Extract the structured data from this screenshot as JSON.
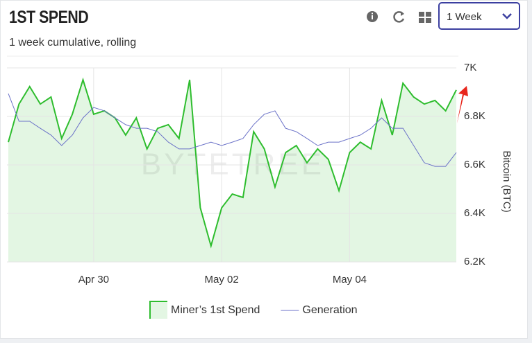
{
  "header": {
    "title": "1ST SPEND",
    "subtitle": "1 week cumulative, rolling",
    "period": "1 Week"
  },
  "chart_data": {
    "type": "line",
    "watermark": "BYTETREE",
    "ylabel": "Bitcoin (BTC)",
    "categories": [
      null,
      null,
      null,
      null,
      null,
      null,
      null,
      null,
      "Apr 30",
      null,
      null,
      null,
      null,
      null,
      null,
      null,
      null,
      null,
      null,
      null,
      "May 02",
      null,
      null,
      null,
      null,
      null,
      null,
      null,
      null,
      null,
      null,
      null,
      "May 04",
      null,
      null,
      null,
      null,
      null,
      null,
      null,
      null,
      null,
      null
    ],
    "ylim": [
      6200,
      7000
    ],
    "yticks": [
      {
        "value": 6200,
        "label": "6.2K"
      },
      {
        "value": 6400,
        "label": "6.4K"
      },
      {
        "value": 6600,
        "label": "6.6K"
      },
      {
        "value": 6800,
        "label": "6.8K"
      },
      {
        "value": 7000,
        "label": "7K"
      }
    ],
    "grid": true,
    "axis_side": "right",
    "series": [
      {
        "name": "Miner’s 1st Spend",
        "color": "#2ebd2e",
        "fill": "#e3f6e3",
        "values": [
          6694,
          6851,
          6923,
          6851,
          6880,
          6709,
          6809,
          6951,
          6809,
          6823,
          6794,
          6723,
          6794,
          6666,
          6751,
          6766,
          6709,
          6951,
          6423,
          6266,
          6423,
          6480,
          6466,
          6737,
          6666,
          6509,
          6651,
          6680,
          6609,
          6666,
          6623,
          6494,
          6651,
          6694,
          6666,
          6866,
          6723,
          6937,
          6880,
          6851,
          6866,
          6823,
          6909
        ]
      },
      {
        "name": "Generation",
        "color": "#6b72c8",
        "values": [
          6894,
          6780,
          6780,
          6751,
          6723,
          6680,
          6723,
          6794,
          6837,
          6823,
          6794,
          6766,
          6751,
          6751,
          6737,
          6694,
          6666,
          6666,
          6680,
          6694,
          6680,
          6694,
          6709,
          6766,
          6809,
          6823,
          6751,
          6737,
          6709,
          6680,
          6694,
          6694,
          6709,
          6723,
          6751,
          6794,
          6751,
          6751,
          6680,
          6609,
          6594,
          6594,
          6651
        ]
      }
    ]
  }
}
